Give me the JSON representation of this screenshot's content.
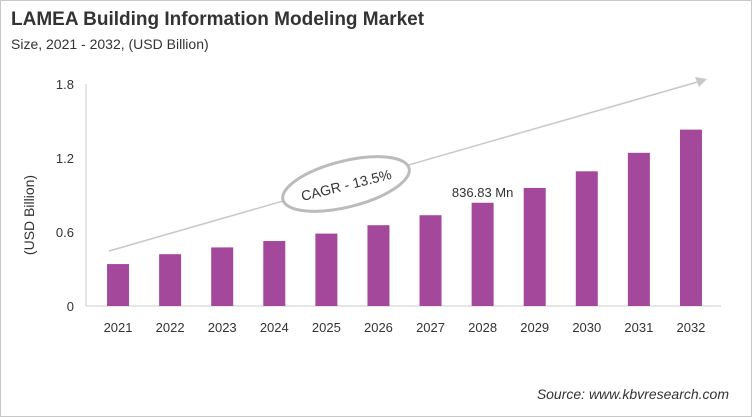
{
  "chart_data": {
    "type": "bar",
    "title": "LAMEA Building Information Modeling Market",
    "subtitle": "Size, 2021 - 2032, (USD Billion)",
    "xlabel": "",
    "ylabel": "(USD Billion)",
    "categories": [
      "2021",
      "2022",
      "2023",
      "2024",
      "2025",
      "2026",
      "2027",
      "2028",
      "2029",
      "2030",
      "2031",
      "2032"
    ],
    "values": [
      0.34,
      0.42,
      0.475,
      0.527,
      0.587,
      0.655,
      0.736,
      0.837,
      0.957,
      1.092,
      1.242,
      1.43
    ],
    "ylim": [
      0,
      1.8
    ],
    "yticks": [
      "0",
      "0.6",
      "1.2",
      "1.8"
    ],
    "grid": false,
    "bar_color": "#a3489a",
    "annotations": {
      "data_label": "836.83 Mn",
      "data_label_category": "2028",
      "cagr": "CAGR - 13.5%"
    },
    "source": "Source: www.kbvresearch.com"
  }
}
